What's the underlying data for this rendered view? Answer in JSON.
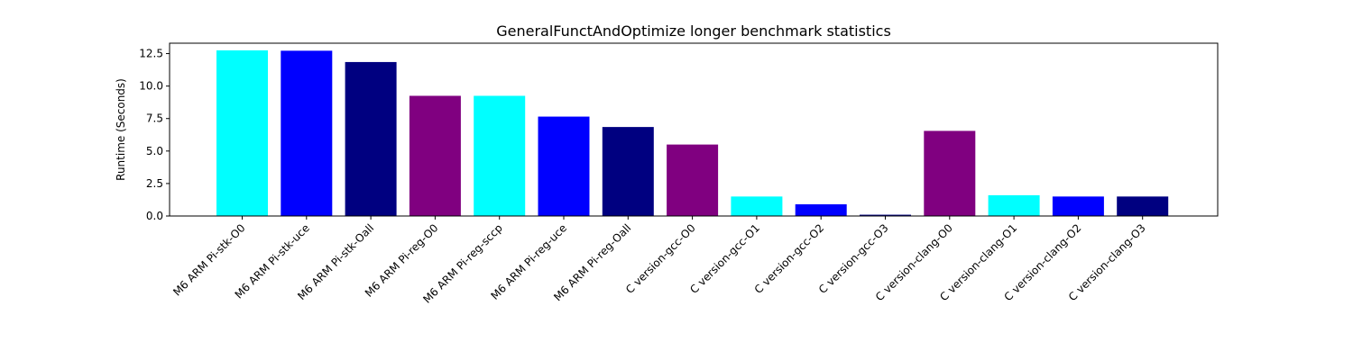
{
  "chart_data": {
    "type": "bar",
    "title": "GeneralFunctAndOptimize longer benchmark statistics",
    "xlabel": "",
    "ylabel": "Runtime (Seconds)",
    "ylim": [
      0,
      13.3
    ],
    "yticks": [
      0.0,
      2.5,
      5.0,
      7.5,
      10.0,
      12.5
    ],
    "ytick_labels": [
      "0.0",
      "2.5",
      "5.0",
      "7.5",
      "10.0",
      "12.5"
    ],
    "grid": false,
    "categories": [
      "M6 ARM Pi-stk-O0",
      "M6 ARM Pi-stk-uce",
      "M6 ARM Pi-stk-Oall",
      "M6 ARM Pi-reg-O0",
      "M6 ARM Pi-reg-sccp",
      "M6 ARM Pi-reg-uce",
      "M6 ARM Pi-reg-Oall",
      "C version-gcc-O0",
      "C version-gcc-O1",
      "C version-gcc-O2",
      "C version-gcc-O3",
      "C version-clang-O0",
      "C version-clang-O1",
      "C version-clang-O2",
      "C version-clang-O3"
    ],
    "values": [
      12.75,
      12.72,
      11.85,
      9.25,
      9.25,
      7.65,
      6.85,
      5.5,
      1.5,
      0.9,
      0.1,
      6.55,
      1.6,
      1.5,
      1.5
    ],
    "colors": [
      "#00ffff",
      "#0000ff",
      "#000080",
      "#800080",
      "#00ffff",
      "#0000ff",
      "#000080",
      "#800080",
      "#00ffff",
      "#0000ff",
      "#000080",
      "#800080",
      "#00ffff",
      "#0000ff",
      "#000080"
    ]
  }
}
